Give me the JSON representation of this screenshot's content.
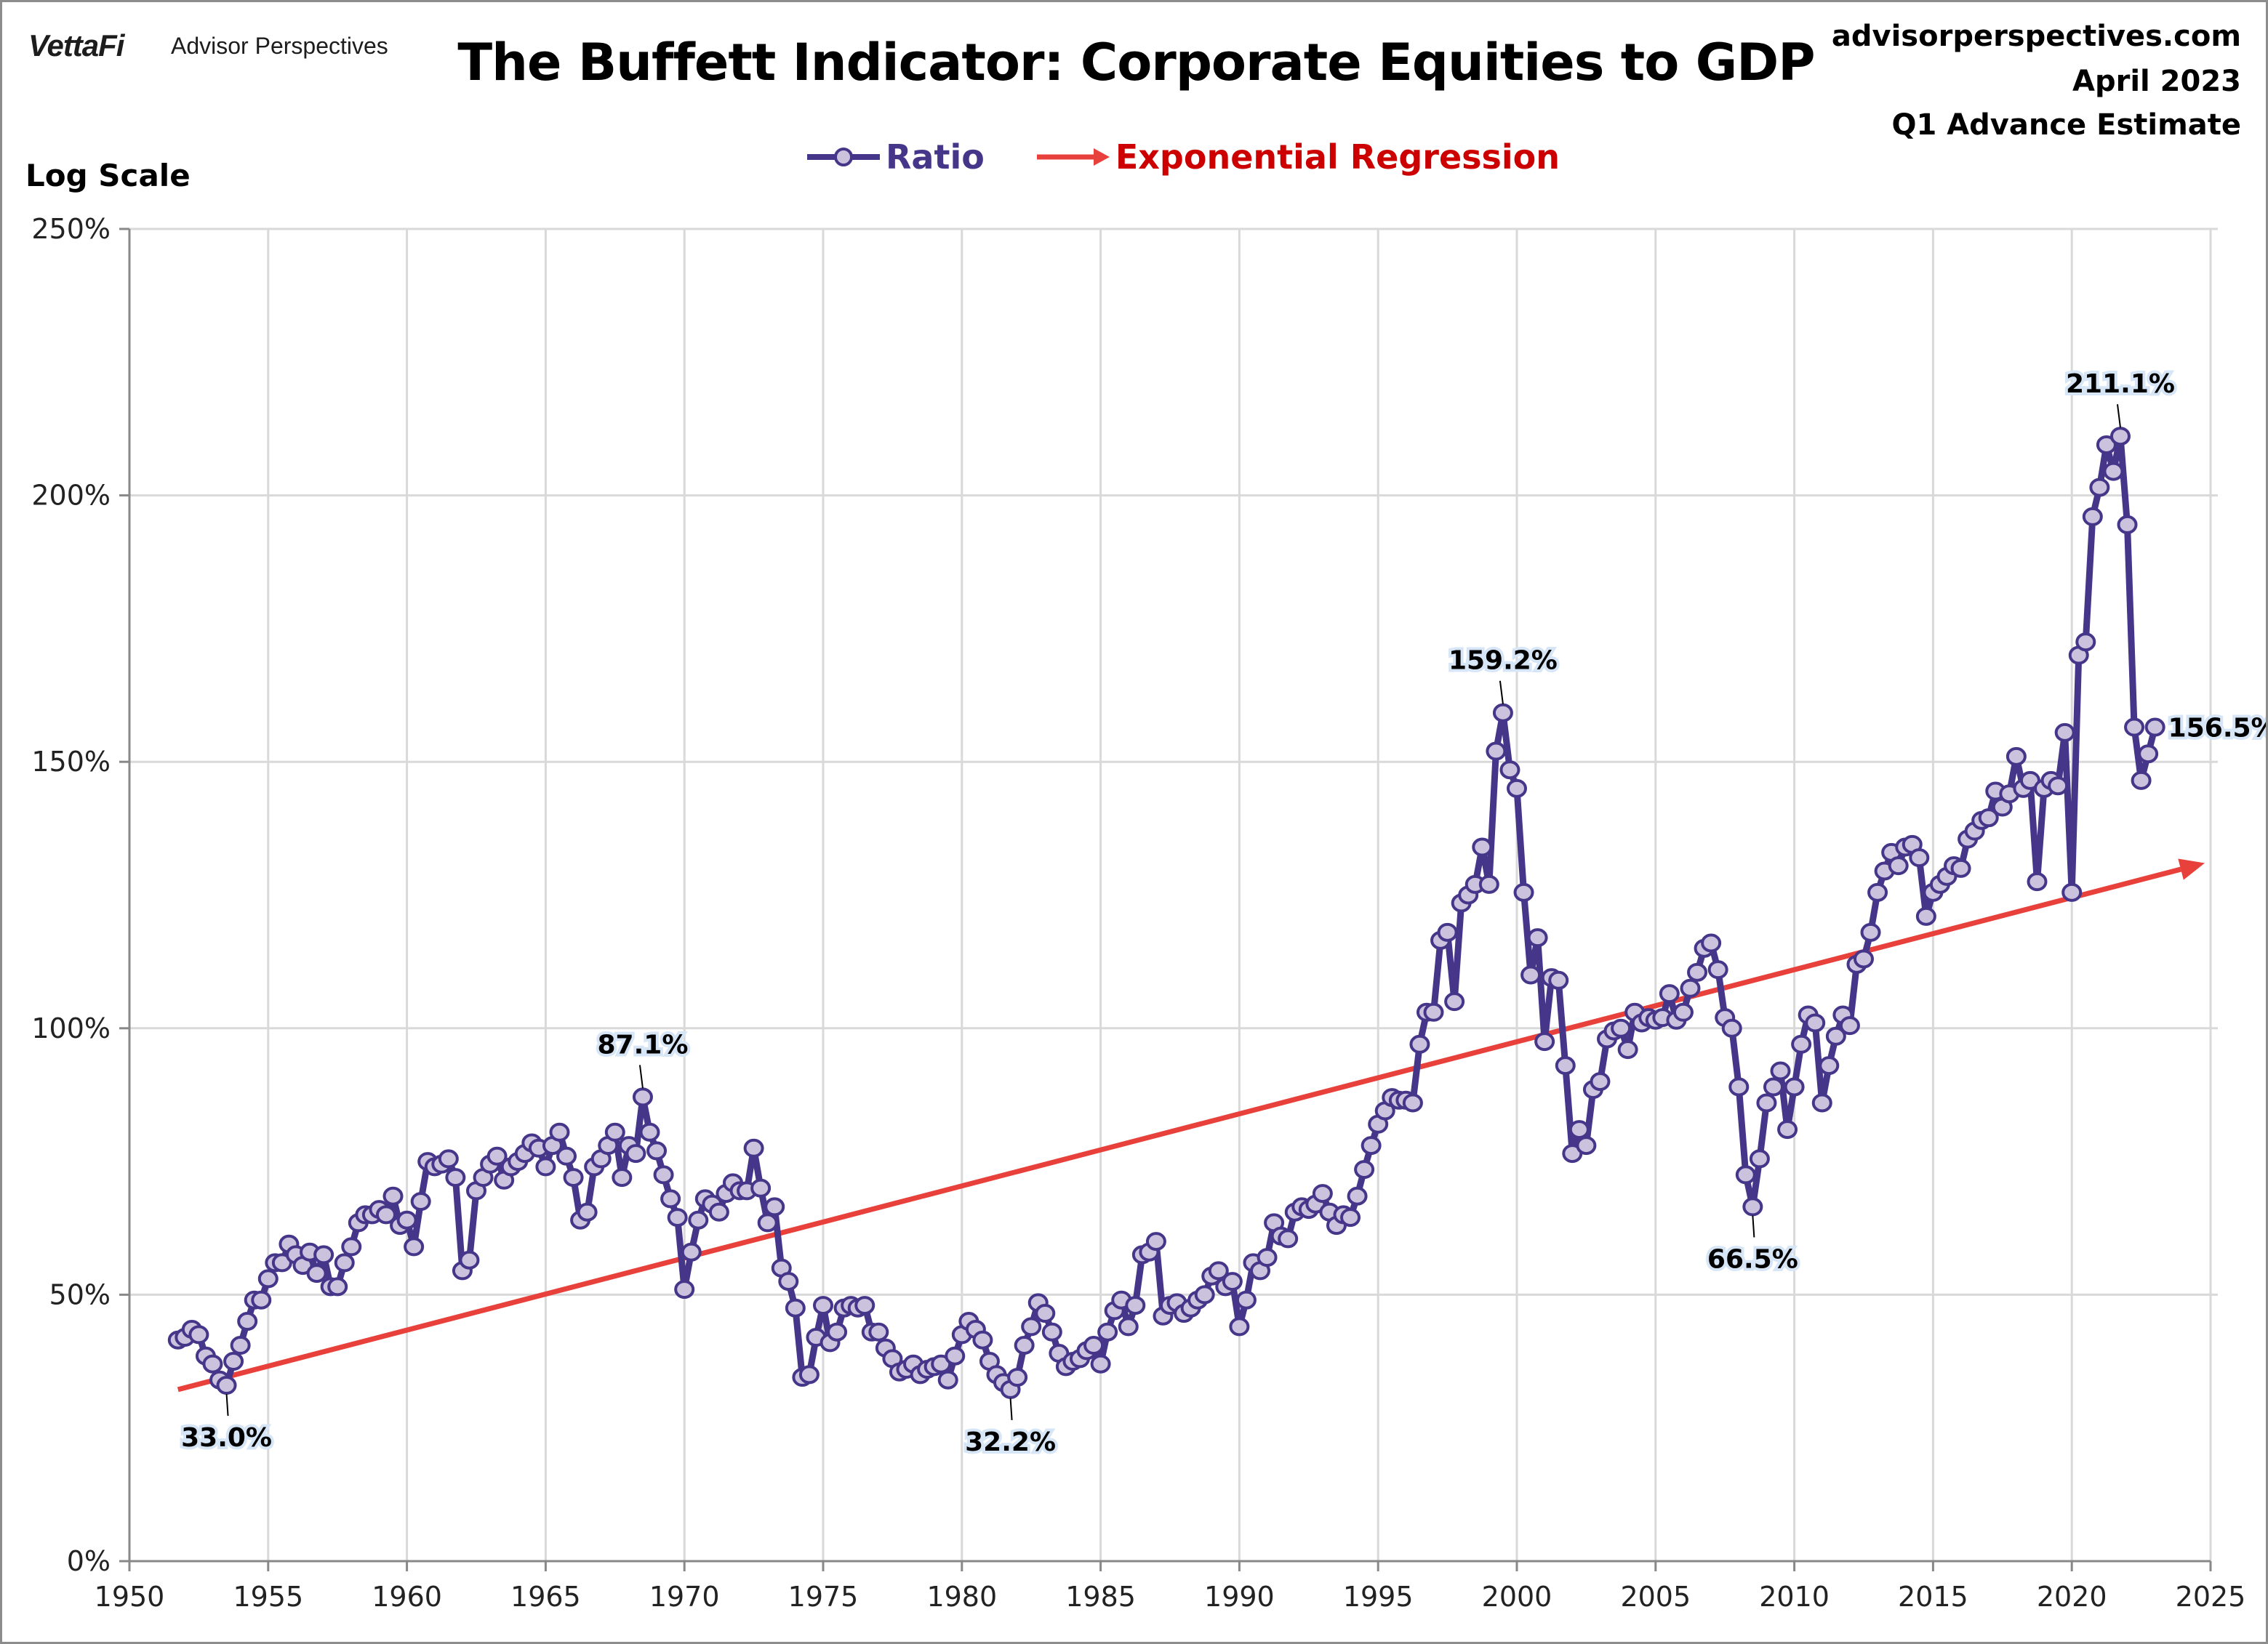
{
  "header": {
    "brand": "VettaFi",
    "brand_sub": "Advisor Perspectives",
    "title": "The Buffett Indicator: Corporate Equities to GDP",
    "site": "advisorperspectives.com",
    "date": "April 2023",
    "estimate": "Q1 Advance Estimate",
    "scale_label": "Log Scale"
  },
  "colors": {
    "ratio_line": "#45368a",
    "ratio_marker": "#cbc3de",
    "regression": "#e8403a",
    "regression_text": "#cc0000",
    "grid": "#d9d9d9"
  },
  "chart_data": {
    "type": "line",
    "title": "The Buffett Indicator: Corporate Equities to GDP",
    "legend": [
      "Ratio",
      "Exponential Regression"
    ],
    "legend_position": "top",
    "grid": true,
    "xlim": [
      1950,
      2025
    ],
    "ylim": [
      0,
      250
    ],
    "x_ticks": [
      "1950",
      "1955",
      "1960",
      "1965",
      "1970",
      "1975",
      "1980",
      "1985",
      "1990",
      "1995",
      "2000",
      "2005",
      "2010",
      "2015",
      "2020",
      "2025"
    ],
    "y_ticks": [
      "0%",
      "50%",
      "100%",
      "150%",
      "200%",
      "250%"
    ],
    "x_start": "1951 Q4",
    "frequency": "quarterly",
    "series": [
      {
        "name": "Ratio",
        "values": [
          41.5,
          42,
          43.5,
          42.5,
          38.5,
          37,
          34,
          33.0,
          37.5,
          40.5,
          45,
          49,
          49,
          53,
          56,
          56,
          59.5,
          57.5,
          55.5,
          58,
          54,
          57.5,
          51.5,
          51.5,
          56,
          59,
          63.5,
          65,
          65,
          66,
          65,
          68.5,
          63,
          64,
          59,
          67.5,
          75,
          74,
          74.5,
          75.5,
          72,
          54.5,
          56.5,
          69.5,
          72,
          74.5,
          76,
          71.5,
          74,
          75,
          76.5,
          78.5,
          77.5,
          74,
          78,
          80.5,
          76,
          72,
          64,
          65.5,
          74,
          75.5,
          78,
          80.5,
          72,
          78,
          76.5,
          87.1,
          80.5,
          77,
          72.5,
          68,
          64.5,
          51,
          58,
          64,
          68,
          67,
          65.5,
          69,
          71,
          69.5,
          69.5,
          77.5,
          70,
          63.5,
          66.5,
          55,
          52.5,
          47.5,
          34.5,
          35,
          42,
          48,
          41,
          43,
          47.5,
          48,
          47.5,
          48,
          43,
          43,
          40,
          38,
          35.5,
          36,
          37,
          35,
          36,
          36.5,
          37,
          34,
          38.5,
          42.5,
          45,
          43.5,
          41.5,
          37.5,
          35,
          33.5,
          32.2,
          34.5,
          40.5,
          44,
          48.5,
          46.5,
          43,
          39,
          36.5,
          37.5,
          38,
          39.5,
          40.5,
          37,
          43,
          47,
          49,
          44,
          48,
          57.5,
          58,
          60,
          46,
          48,
          48.5,
          46.5,
          47.5,
          49,
          50,
          53.5,
          54.5,
          51.5,
          52.5,
          44,
          49,
          56,
          54.5,
          57,
          63.5,
          61,
          60.5,
          65.5,
          66.5,
          66,
          67,
          69,
          65.5,
          63,
          65,
          64.5,
          68.5,
          73.5,
          78,
          82,
          84.5,
          87,
          86.5,
          86.5,
          86,
          97,
          103,
          103,
          116.5,
          118,
          105,
          123.5,
          125,
          127,
          134,
          127,
          152,
          159.2,
          148.5,
          145,
          125.5,
          110,
          117,
          97.5,
          109.5,
          109,
          93,
          76.5,
          81,
          78,
          88.5,
          90,
          98,
          99.5,
          100,
          96,
          103,
          101,
          102,
          101.5,
          102,
          106.5,
          101.5,
          103,
          107.5,
          110.5,
          115,
          116,
          111,
          102,
          100,
          89,
          72.5,
          66.5,
          75.5,
          86,
          89,
          92,
          81,
          89,
          97,
          102.5,
          101,
          86,
          93,
          98.5,
          102.5,
          100.5,
          112,
          113,
          118,
          125.5,
          129.5,
          133,
          130.5,
          134,
          134.5,
          132,
          121,
          125.5,
          127,
          128.5,
          130.5,
          130,
          135.5,
          137,
          139,
          139.5,
          144.5,
          141.5,
          144,
          151,
          145,
          146.5,
          127.5,
          145,
          146.5,
          145.5,
          155.5,
          125.5,
          170,
          172.5,
          196,
          201.5,
          209.5,
          204.5,
          211.1,
          194.5,
          156.5,
          146.5,
          151.5,
          156.5
        ]
      },
      {
        "name": "Exponential Regression",
        "start": [
          "1951 Q4",
          32.2
        ],
        "end": [
          "2025",
          131
        ]
      }
    ],
    "annotations": [
      {
        "label": "33.0%",
        "at": "1953 Q3",
        "placement": "below"
      },
      {
        "label": "87.1%",
        "at": "1968 Q3",
        "placement": "above"
      },
      {
        "label": "32.2%",
        "at": "1981 Q4",
        "placement": "below"
      },
      {
        "label": "159.2%",
        "at": "1999 Q3",
        "placement": "above"
      },
      {
        "label": "66.5%",
        "at": "2008 Q3",
        "placement": "below"
      },
      {
        "label": "211.1%",
        "at": "2021 Q4",
        "placement": "above"
      },
      {
        "label": "156.5%",
        "at": "2023 Q1",
        "placement": "right"
      }
    ]
  }
}
